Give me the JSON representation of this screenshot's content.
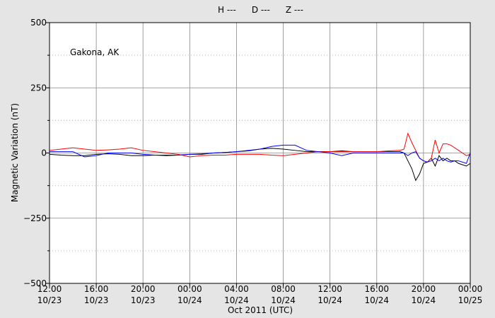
{
  "chart_data": {
    "type": "line",
    "annotation": "Gakona, AK",
    "xlabel": "Oct 2011 (UTC)",
    "ylabel": "Magnetic Variation (nT)",
    "x": [
      "2011-10-23T12:00",
      "2011-10-23T13:00",
      "2011-10-23T14:00",
      "2011-10-23T15:00",
      "2011-10-23T16:00",
      "2011-10-23T17:00",
      "2011-10-23T18:00",
      "2011-10-23T19:00",
      "2011-10-23T20:00",
      "2011-10-23T21:00",
      "2011-10-23T22:00",
      "2011-10-23T23:00",
      "2011-10-24T00:00",
      "2011-10-24T01:00",
      "2011-10-24T02:00",
      "2011-10-24T03:00",
      "2011-10-24T04:00",
      "2011-10-24T05:00",
      "2011-10-24T06:00",
      "2011-10-24T07:00",
      "2011-10-24T08:00",
      "2011-10-24T09:00",
      "2011-10-24T10:00",
      "2011-10-24T11:00",
      "2011-10-24T12:00",
      "2011-10-24T13:00",
      "2011-10-24T14:00",
      "2011-10-24T15:00",
      "2011-10-24T16:00",
      "2011-10-24T17:00",
      "2011-10-24T18:00",
      "2011-10-24T18:20",
      "2011-10-24T18:40",
      "2011-10-24T19:00",
      "2011-10-24T19:20",
      "2011-10-24T19:40",
      "2011-10-24T20:00",
      "2011-10-24T20:20",
      "2011-10-24T20:40",
      "2011-10-24T21:00",
      "2011-10-24T21:20",
      "2011-10-24T21:40",
      "2011-10-24T22:00",
      "2011-10-24T22:20",
      "2011-10-24T22:40",
      "2011-10-24T23:00",
      "2011-10-24T23:20",
      "2011-10-24T23:40",
      "2011-10-25T00:00"
    ],
    "series": [
      {
        "name": "H ---",
        "color": "#000000",
        "values": [
          -5,
          -8,
          -10,
          -10,
          -5,
          -3,
          -5,
          -10,
          -10,
          -8,
          -10,
          -8,
          -5,
          -5,
          0,
          2,
          5,
          8,
          15,
          18,
          15,
          10,
          5,
          5,
          5,
          8,
          5,
          5,
          5,
          5,
          5,
          0,
          -30,
          -60,
          -105,
          -80,
          -40,
          -35,
          -20,
          -50,
          -10,
          -30,
          -20,
          -30,
          -30,
          -40,
          -45,
          -50,
          -40
        ]
      },
      {
        "name": "D ---",
        "color": "#ff0000",
        "values": [
          10,
          15,
          20,
          15,
          10,
          12,
          15,
          20,
          10,
          5,
          0,
          -5,
          -15,
          -10,
          -8,
          -8,
          -5,
          -5,
          -5,
          -8,
          -10,
          -5,
          0,
          5,
          5,
          5,
          5,
          5,
          5,
          8,
          10,
          15,
          75,
          40,
          10,
          -20,
          -30,
          -35,
          -20,
          50,
          0,
          35,
          35,
          30,
          20,
          10,
          0,
          -10,
          -5
        ]
      },
      {
        "name": "Z ---",
        "color": "#0000ff",
        "values": [
          5,
          5,
          5,
          -15,
          -10,
          0,
          0,
          0,
          -5,
          -8,
          -8,
          -8,
          -5,
          -3,
          0,
          2,
          5,
          10,
          15,
          25,
          30,
          30,
          10,
          5,
          0,
          -10,
          0,
          0,
          0,
          0,
          0,
          0,
          -10,
          0,
          5,
          -20,
          -30,
          -35,
          -30,
          -20,
          -30,
          -20,
          -30,
          -35,
          -30,
          -30,
          -35,
          -40,
          0
        ]
      }
    ],
    "xlim": [
      "2011-10-23T12:00",
      "2011-10-25T00:00"
    ],
    "xticks": [
      {
        "value": "2011-10-23T12:00",
        "label": "12:00\n10/23"
      },
      {
        "value": "2011-10-23T16:00",
        "label": "16:00\n10/23"
      },
      {
        "value": "2011-10-23T20:00",
        "label": "20:00\n10/23"
      },
      {
        "value": "2011-10-24T00:00",
        "label": "00:00\n10/24"
      },
      {
        "value": "2011-10-24T04:00",
        "label": "04:00\n10/24"
      },
      {
        "value": "2011-10-24T08:00",
        "label": "08:00\n10/24"
      },
      {
        "value": "2011-10-24T12:00",
        "label": "12:00\n10/24"
      },
      {
        "value": "2011-10-24T16:00",
        "label": "16:00\n10/24"
      },
      {
        "value": "2011-10-24T20:00",
        "label": "20:00\n10/24"
      },
      {
        "value": "2011-10-25T00:00",
        "label": "00:00\n10/25"
      }
    ],
    "ylim": [
      -500,
      500
    ],
    "yticks": [
      {
        "value": -500,
        "label": "−500"
      },
      {
        "value": -250,
        "label": "−250"
      },
      0,
      250,
      500
    ],
    "minor_yticks": [
      -375,
      -125,
      125,
      375
    ],
    "grid": true
  }
}
